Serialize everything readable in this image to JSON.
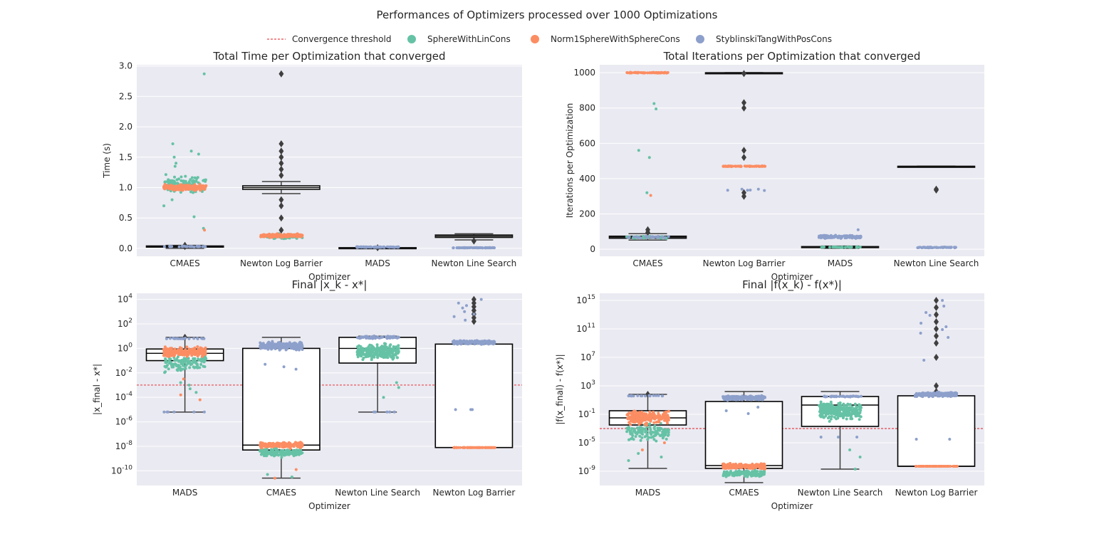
{
  "suptitle": "Performances of Optimizers processed over 1000 Optimizations",
  "colors": {
    "sphere": "#66c2a5",
    "norm1": "#fc8d62",
    "styb": "#8da0cb",
    "threshold": "#e41a1c",
    "panel_bg": "#eaeaf2",
    "box_dark": "#3f3f3f"
  },
  "legend": {
    "placement": "top-center",
    "items": [
      {
        "label": "Convergence threshold",
        "kind": "dashed-line",
        "color": "#e41a1c"
      },
      {
        "label": "SphereWithLinCons",
        "kind": "circle",
        "color": "#66c2a5"
      },
      {
        "label": "Norm1SphereWithSphereCons",
        "kind": "circle",
        "color": "#fc8d62"
      },
      {
        "label": "StyblinskiTangWithPosCons",
        "kind": "circle",
        "color": "#8da0cb"
      }
    ]
  },
  "chart_data": [
    {
      "type": "box",
      "title": "Total Time per Optimization that converged",
      "xlabel": "Optimizer",
      "ylabel": "Time (s)",
      "scale": "linear",
      "ylim": [
        -0.13,
        3.02
      ],
      "yticks": [
        0.0,
        0.5,
        1.0,
        1.5,
        2.0,
        2.5,
        3.0
      ],
      "ytick_labels": [
        "0.0",
        "0.5",
        "1.0",
        "1.5",
        "2.0",
        "2.5",
        "3.0"
      ],
      "grid": true,
      "categories": [
        "CMAES",
        "Newton Log Barrier",
        "MADS",
        "Newton Line Search"
      ],
      "boxes": [
        {
          "q1": 0.02,
          "median": 0.03,
          "q3": 0.04,
          "whislo": 0.0,
          "whishi": 0.05,
          "fliers": [
            0.03,
            0.05
          ],
          "style": "dark"
        },
        {
          "q1": 0.97,
          "median": 1.0,
          "q3": 1.03,
          "whislo": 0.9,
          "whishi": 1.1,
          "fliers": [
            2.87,
            1.72,
            1.6,
            1.5,
            1.4,
            1.3,
            1.2,
            0.8,
            0.7,
            0.5,
            0.3,
            0.2
          ],
          "style": "dark"
        },
        {
          "q1": 0.005,
          "median": 0.008,
          "q3": 0.012,
          "whislo": 0.0,
          "whishi": 0.02,
          "fliers": [
            0.01
          ],
          "style": "dark"
        },
        {
          "q1": 0.18,
          "median": 0.2,
          "q3": 0.22,
          "whislo": 0.14,
          "whishi": 0.24,
          "fliers": [
            0.12
          ],
          "style": "dark"
        }
      ],
      "strips": [
        [
          {
            "series": "SphereWithLinCons",
            "center": 1.05,
            "spread": 0.18,
            "n": 130,
            "outliers": [
              2.87,
              1.72,
              1.6,
              1.55,
              1.5,
              1.4,
              1.35,
              0.8,
              0.7,
              0.52,
              0.33
            ]
          },
          {
            "series": "Norm1SphereWithSphereCons",
            "center": 1.0,
            "spread": 0.06,
            "n": 220,
            "outliers": [
              0.3
            ]
          },
          {
            "series": "StyblinskiTangWithPosCons",
            "center": 0.03,
            "spread": 0.01,
            "n": 30,
            "outliers": []
          }
        ],
        [
          {
            "series": "SphereWithLinCons",
            "center": 0.2,
            "spread": 0.05,
            "n": 80,
            "outliers": []
          },
          {
            "series": "Norm1SphereWithSphereCons",
            "center": 0.21,
            "spread": 0.04,
            "n": 160,
            "outliers": []
          }
        ],
        [
          {
            "series": "StyblinskiTangWithPosCons",
            "center": 0.02,
            "spread": 0.01,
            "n": 80,
            "outliers": []
          }
        ],
        [
          {
            "series": "StyblinskiTangWithPosCons",
            "center": 0.01,
            "spread": 0.004,
            "n": 80,
            "outliers": []
          }
        ]
      ]
    },
    {
      "type": "box",
      "title": "Total Iterations per Optimization that converged",
      "xlabel": "Optimizer",
      "ylabel": "Iterations per Optimization",
      "scale": "linear",
      "ylim": [
        -40,
        1045
      ],
      "yticks": [
        0,
        200,
        400,
        600,
        800,
        1000
      ],
      "ytick_labels": [
        "0",
        "200",
        "400",
        "600",
        "800",
        "1000"
      ],
      "grid": true,
      "categories": [
        "CMAES",
        "Newton Log Barrier",
        "MADS",
        "Newton Line Search"
      ],
      "boxes": [
        {
          "q1": 62,
          "median": 68,
          "q3": 74,
          "whislo": 52,
          "whishi": 88,
          "fliers": [
            110,
            95
          ],
          "style": "dark"
        },
        {
          "q1": 1000,
          "median": 1000,
          "q3": 1000,
          "whislo": 1000,
          "whishi": 1000,
          "fliers": [
            995,
            830,
            800,
            560,
            520,
            320,
            300
          ],
          "style": "dark"
        },
        {
          "q1": 10,
          "median": 12,
          "q3": 15,
          "whislo": 5,
          "whishi": 18,
          "fliers": [],
          "style": "dark"
        },
        {
          "q1": 470,
          "median": 470,
          "q3": 470,
          "whislo": 470,
          "whishi": 470,
          "fliers": [
            340,
            335
          ],
          "style": "dark"
        }
      ],
      "strips": [
        [
          {
            "series": "Norm1SphereWithSphereCons",
            "center": 1000,
            "spread": 3,
            "n": 60,
            "outliers": [
              305
            ]
          },
          {
            "series": "SphereWithLinCons",
            "center": 68,
            "spread": 10,
            "n": 40,
            "outliers": [
              825,
              795,
              560,
              520,
              320
            ]
          },
          {
            "series": "StyblinskiTangWithPosCons",
            "center": 68,
            "spread": 8,
            "n": 30,
            "outliers": []
          }
        ],
        [
          {
            "series": "Norm1SphereWithSphereCons",
            "center": 470,
            "spread": 3,
            "n": 60,
            "outliers": []
          },
          {
            "series": "StyblinskiTangWithPosCons",
            "center": 335,
            "spread": 4,
            "n": 4,
            "outliers": [
              340,
              340
            ]
          }
        ],
        [
          {
            "series": "StyblinskiTangWithPosCons",
            "center": 70,
            "spread": 12,
            "n": 120,
            "outliers": [
              110
            ]
          },
          {
            "series": "SphereWithLinCons",
            "center": 12,
            "spread": 3,
            "n": 30,
            "outliers": []
          }
        ],
        [
          {
            "series": "StyblinskiTangWithPosCons",
            "center": 10,
            "spread": 3,
            "n": 60,
            "outliers": []
          }
        ]
      ]
    },
    {
      "type": "box",
      "title": "Final |x_k - x*|",
      "xlabel": "Optimizer",
      "ylabel": "|x_final - x*|",
      "scale": "log",
      "ylim_log10": [
        -11.2,
        4.5
      ],
      "yticks_log10": [
        -10,
        -8,
        -6,
        -4,
        -2,
        0,
        2,
        4
      ],
      "threshold_log10": -3,
      "grid": true,
      "categories": [
        "MADS",
        "CMAES",
        "Newton Line Search",
        "Newton Log Barrier"
      ],
      "boxes": [
        {
          "q1": -1,
          "median": -0.4,
          "q3": -0.05,
          "whislo": -5.2,
          "whishi": 0.9,
          "fliers": [
            0.9
          ],
          "style": "light"
        },
        {
          "q1": -8.3,
          "median": -7.9,
          "q3": 0.0,
          "whislo": -10.6,
          "whishi": 0.9,
          "fliers": [],
          "style": "light"
        },
        {
          "q1": -1.2,
          "median": 0.0,
          "q3": 0.9,
          "whislo": -5.2,
          "whishi": 1.0,
          "fliers": [],
          "style": "light"
        },
        {
          "q1": -8.1,
          "median": -8.1,
          "q3": 0.35,
          "whislo": -8.1,
          "whishi": 0.35,
          "fliers": [
            4.0,
            3.7,
            3.4,
            3.1,
            2.8,
            2.5,
            2.2
          ],
          "style": "light"
        }
      ],
      "strips": [
        [
          {
            "series": "StyblinskiTangWithPosCons",
            "center": 0.8,
            "spread": 0.05,
            "n": 20,
            "outliers": [
              -5.2,
              -5.2,
              -5.2,
              -5.2,
              -5.2,
              -5.2
            ]
          },
          {
            "series": "SphereWithLinCons",
            "center": -1.2,
            "spread": 0.9,
            "n": 120,
            "outliers": [
              -3,
              -3.3,
              -3.6,
              -2.8
            ]
          },
          {
            "series": "Norm1SphereWithSphereCons",
            "center": -0.3,
            "spread": 0.5,
            "n": 200,
            "outliers": [
              -3.8,
              -4.2,
              -2.5
            ]
          }
        ],
        [
          {
            "series": "StyblinskiTangWithPosCons",
            "center": 0.2,
            "spread": 0.4,
            "n": 200,
            "outliers": [
              -1.3,
              -1.7,
              -1.5
            ]
          },
          {
            "series": "SphereWithLinCons",
            "center": -8.5,
            "spread": 0.45,
            "n": 150,
            "outliers": [
              -10.3,
              -10.5
            ]
          },
          {
            "series": "Norm1SphereWithSphereCons",
            "center": -7.9,
            "spread": 0.3,
            "n": 200,
            "outliers": [
              -10.6,
              -9.9
            ]
          }
        ],
        [
          {
            "series": "StyblinskiTangWithPosCons",
            "center": 0.9,
            "spread": 0.15,
            "n": 60,
            "outliers": [
              -5.2,
              -5.2,
              -5.2,
              -5.2,
              -5.2
            ]
          },
          {
            "series": "SphereWithLinCons",
            "center": -0.3,
            "spread": 0.8,
            "n": 250,
            "outliers": [
              -2.8,
              -3.2,
              -4.0
            ]
          }
        ],
        [
          {
            "series": "Norm1SphereWithSphereCons",
            "center": -8.1,
            "spread": 0.0,
            "n": 60,
            "outliers": []
          },
          {
            "series": "StyblinskiTangWithPosCons",
            "center": 0.5,
            "spread": 0.2,
            "n": 200,
            "outliers": [
              4.0,
              3.7,
              3.5,
              3.3,
              3.0,
              2.8,
              2.6,
              2.3,
              -5.0,
              -5.0,
              -5.0
            ]
          }
        ]
      ]
    },
    {
      "type": "box",
      "title": "Final |f(x_k) - f(x*)|",
      "xlabel": "Optimizer",
      "ylabel": "|f(x_final) - f(x*)|",
      "scale": "log",
      "ylim_log10": [
        -11,
        16
      ],
      "yticks_log10": [
        -9,
        -5,
        -1,
        3,
        7,
        11,
        15
      ],
      "threshold_log10": -3,
      "grid": true,
      "categories": [
        "MADS",
        "CMAES",
        "Newton Line Search",
        "Newton Log Barrier"
      ],
      "boxes": [
        {
          "q1": -2.5,
          "median": -1.5,
          "q3": -0.5,
          "whislo": -8.6,
          "whishi": 1.8,
          "fliers": [
            1.8
          ],
          "style": "light"
        },
        {
          "q1": -8.6,
          "median": -8.2,
          "q3": 0.8,
          "whislo": -10.6,
          "whishi": 2.2,
          "fliers": [],
          "style": "light"
        },
        {
          "q1": -2.7,
          "median": 0.3,
          "q3": 1.5,
          "whislo": -8.7,
          "whishi": 2.2,
          "fliers": [],
          "style": "light"
        },
        {
          "q1": -8.3,
          "median": -8.3,
          "q3": 1.6,
          "whislo": -8.3,
          "whishi": 1.6,
          "fliers": [
            15,
            14,
            13,
            12,
            11,
            10,
            9,
            7,
            3,
            2.2
          ],
          "style": "light"
        }
      ],
      "strips": [
        [
          {
            "series": "StyblinskiTangWithPosCons",
            "center": 1.6,
            "spread": 0.05,
            "n": 20,
            "outliers": []
          },
          {
            "series": "SphereWithLinCons",
            "center": -3.5,
            "spread": 1.5,
            "n": 120,
            "outliers": [
              -7,
              -7.5,
              -6.5
            ]
          },
          {
            "series": "Norm1SphereWithSphereCons",
            "center": -1.5,
            "spread": 1.2,
            "n": 200,
            "outliers": [
              -6.0,
              -5.0
            ]
          }
        ],
        [
          {
            "series": "StyblinskiTangWithPosCons",
            "center": 1.3,
            "spread": 0.4,
            "n": 200,
            "outliers": [
              0,
              -0.5,
              -0.9
            ]
          },
          {
            "series": "SphereWithLinCons",
            "center": -9.3,
            "spread": 0.6,
            "n": 150,
            "outliers": []
          },
          {
            "series": "Norm1SphereWithSphereCons",
            "center": -8.3,
            "spread": 0.45,
            "n": 220,
            "outliers": []
          }
        ],
        [
          {
            "series": "StyblinskiTangWithPosCons",
            "center": 1.5,
            "spread": 0.1,
            "n": 40,
            "outliers": [
              -4.2,
              -4.2,
              -4.2
            ]
          },
          {
            "series": "SphereWithLinCons",
            "center": -0.5,
            "spread": 1.6,
            "n": 280,
            "outliers": [
              -6,
              -7,
              -8.7
            ]
          }
        ],
        [
          {
            "series": "Norm1SphereWithSphereCons",
            "center": -8.3,
            "spread": 0.0,
            "n": 60,
            "outliers": []
          },
          {
            "series": "StyblinskiTangWithPosCons",
            "center": 1.8,
            "spread": 0.4,
            "n": 200,
            "outliers": [
              15,
              14.2,
              13.3,
              12.9,
              11.8,
              11.3,
              10.9,
              10.4,
              9.8,
              6.6,
              -4.5,
              -4.5
            ]
          }
        ]
      ]
    }
  ]
}
